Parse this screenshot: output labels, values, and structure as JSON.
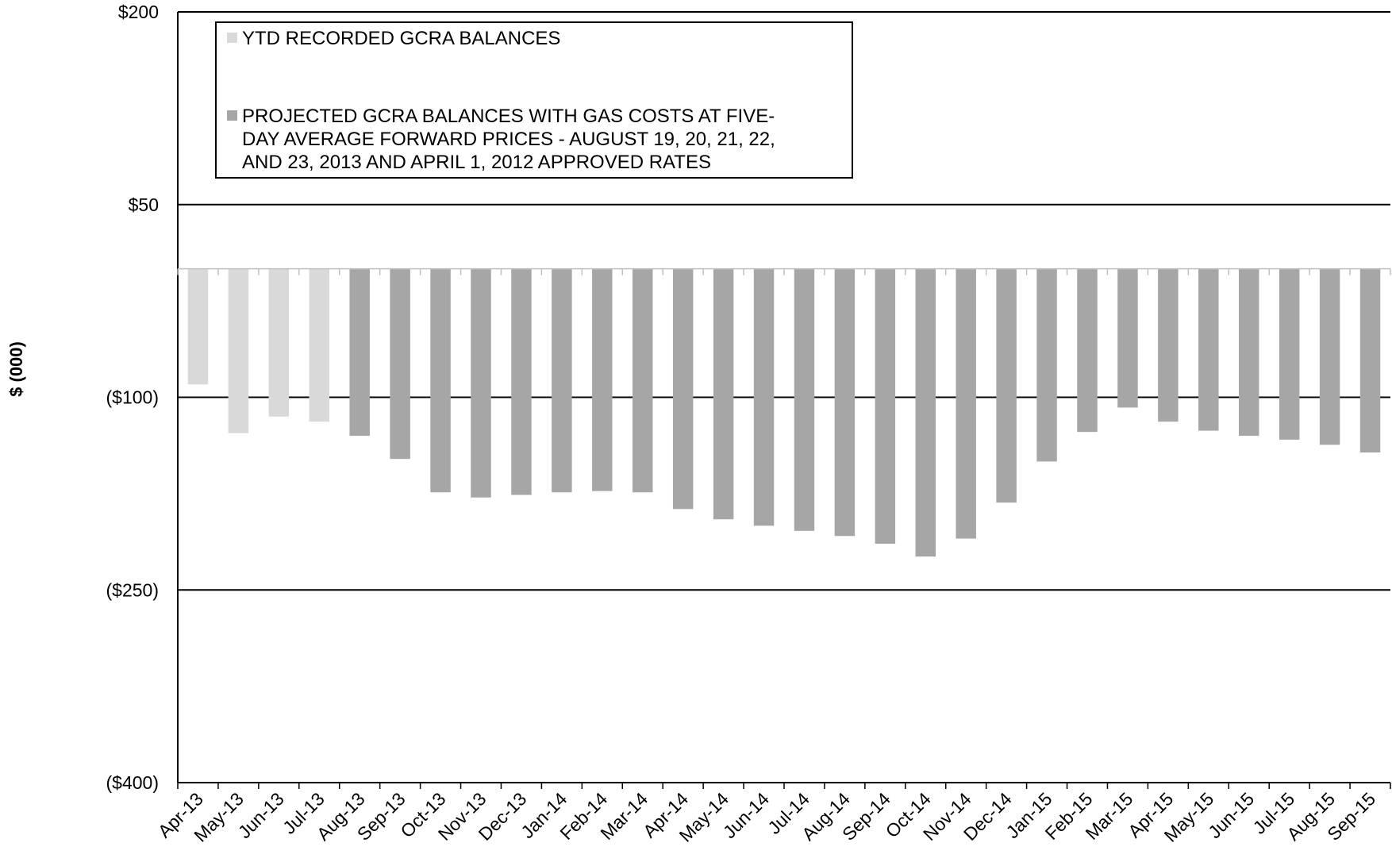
{
  "chart_data": {
    "type": "bar",
    "ylabel": "$ (000)",
    "ylim": [
      -400,
      200
    ],
    "yticks": [
      200,
      50,
      -100,
      -250,
      -400
    ],
    "ytick_labels": [
      "$200",
      "$50",
      "($100)",
      "($250)",
      "($400)"
    ],
    "baseline": 0,
    "grid": true,
    "legend_position": "top-left",
    "categories": [
      "Apr-13",
      "May-13",
      "Jun-13",
      "Jul-13",
      "Aug-13",
      "Sep-13",
      "Oct-13",
      "Nov-13",
      "Dec-13",
      "Jan-14",
      "Feb-14",
      "Mar-14",
      "Apr-14",
      "May-14",
      "Jun-14",
      "Jul-14",
      "Aug-14",
      "Sep-14",
      "Oct-14",
      "Nov-14",
      "Dec-14",
      "Jan-15",
      "Feb-15",
      "Mar-15",
      "Apr-15",
      "May-15",
      "Jun-15",
      "Jul-15",
      "Aug-15",
      "Sep-15"
    ],
    "series": [
      {
        "name": "YTD RECORDED GCRA BALANCES",
        "legend_lines": [
          "YTD RECORDED GCRA BALANCES"
        ],
        "color": "#d9d9d9",
        "values": [
          -90,
          -128,
          -115,
          -119,
          null,
          null,
          null,
          null,
          null,
          null,
          null,
          null,
          null,
          null,
          null,
          null,
          null,
          null,
          null,
          null,
          null,
          null,
          null,
          null,
          null,
          null,
          null,
          null,
          null,
          null
        ]
      },
      {
        "name": "PROJECTED GCRA BALANCES WITH GAS COSTS AT FIVE-DAY AVERAGE FORWARD PRICES - AUGUST 19, 20, 21, 22, AND 23, 2013 AND APRIL 1, 2012 APPROVED RATES",
        "legend_lines": [
          "PROJECTED GCRA BALANCES WITH GAS COSTS AT FIVE-",
          "DAY AVERAGE FORWARD PRICES - AUGUST 19, 20, 21, 22,",
          "AND 23, 2013 AND APRIL 1, 2012 APPROVED RATES"
        ],
        "color": "#a6a6a6",
        "values": [
          null,
          null,
          null,
          null,
          -130,
          -148,
          -174,
          -178,
          -176,
          -174,
          -173,
          -174,
          -187,
          -195,
          -200,
          -204,
          -208,
          -214,
          -224,
          -210,
          -182,
          -150,
          -127,
          -108,
          -119,
          -126,
          -130,
          -133,
          -137,
          -143
        ]
      }
    ]
  }
}
